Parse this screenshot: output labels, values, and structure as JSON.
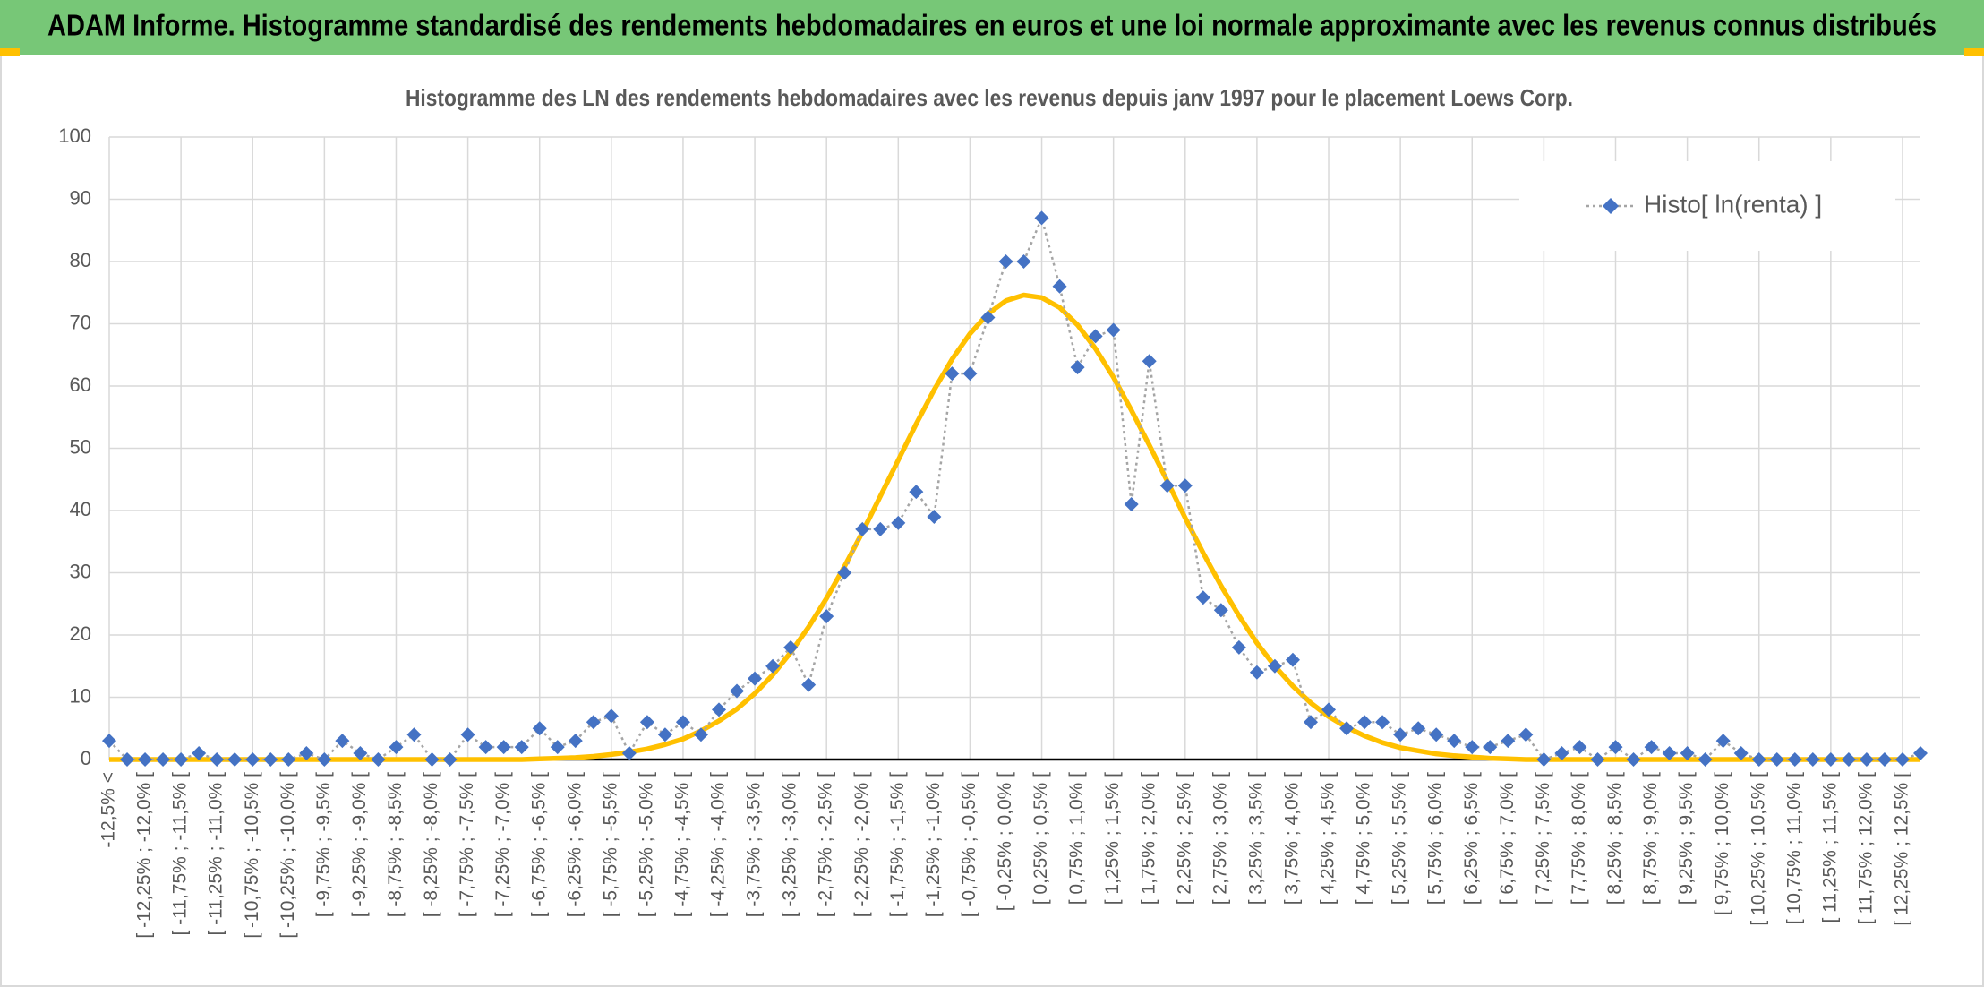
{
  "header": {
    "title": "ADAM Informe. Histogramme standardisé des rendements hebdomadaires en euros et une loi normale approximante avec les revenus connus distribués"
  },
  "chart_data": {
    "type": "line",
    "title": "Histogramme des LN des rendements hebdomadaires avec les revenus depuis janv 1997 pour le placement Loews Corp.",
    "categories": [
      "-12,5% <",
      null,
      "[ -12,25% ; -12,0% [",
      null,
      "[ -11,75% ; -11,5% [",
      null,
      "[ -11,25% ; -11,0% [",
      null,
      "[ -10,75% ; -10,5% [",
      null,
      "[ -10,25% ; -10,0% [",
      null,
      "[ -9,75% ; -9,5% [",
      null,
      "[ -9,25% ; -9,0% [",
      null,
      "[ -8,75% ; -8,5% [",
      null,
      "[ -8,25% ; -8,0% [",
      null,
      "[ -7,75% ; -7,5% [",
      null,
      "[ -7,25% ; -7,0% [",
      null,
      "[ -6,75% ; -6,5% [",
      null,
      "[ -6,25% ; -6,0% [",
      null,
      "[ -5,75% ; -5,5% [",
      null,
      "[ -5,25% ; -5,0% [",
      null,
      "[ -4,75% ; -4,5% [",
      null,
      "[ -4,25% ; -4,0% [",
      null,
      "[ -3,75% ; -3,5% [",
      null,
      "[ -3,25% ; -3,0% [",
      null,
      "[ -2,75% ; -2,5% [",
      null,
      "[ -2,25% ; -2,0% [",
      null,
      "[ -1,75% ; -1,5% [",
      null,
      "[ -1,25% ; -1,0% [",
      null,
      "[ -0,75% ; -0,5% [",
      null,
      "[ -0,25% ; 0,0% [",
      null,
      "[ 0,25% ; 0,5% [",
      null,
      "[ 0,75% ; 1,0% [",
      null,
      "[ 1,25% ; 1,5% [",
      null,
      "[ 1,75% ; 2,0% [",
      null,
      "[ 2,25% ; 2,5% [",
      null,
      "[ 2,75% ; 3,0% [",
      null,
      "[ 3,25% ; 3,5% [",
      null,
      "[ 3,75% ; 4,0% [",
      null,
      "[ 4,25% ; 4,5% [",
      null,
      "[ 4,75% ; 5,0% [",
      null,
      "[ 5,25% ; 5,5% [",
      null,
      "[ 5,75% ; 6,0% [",
      null,
      "[ 6,25% ; 6,5% [",
      null,
      "[ 6,75% ; 7,0% [",
      null,
      "[ 7,25% ; 7,5% [",
      null,
      "[ 7,75% ; 8,0% [",
      null,
      "[ 8,25% ; 8,5% [",
      null,
      "[ 8,75% ; 9,0% [",
      null,
      "[ 9,25% ; 9,5% [",
      null,
      "[ 9,75% ; 10,0% [",
      null,
      "[ 10,25% ; 10,5% [",
      null,
      "[ 10,75% ; 11,0% [",
      null,
      "[ 11,25% ; 11,5% [",
      null,
      "[ 11,75% ; 12,0% [",
      null,
      "[ 12,25% ; 12,5% [",
      null
    ],
    "series": [
      {
        "name": "Histo[ ln(renta) ]",
        "color": "#4472c4",
        "line_color": "#a5a5a5",
        "marker": "diamond",
        "values": [
          3,
          0,
          0,
          0,
          0,
          1,
          0,
          0,
          0,
          0,
          0,
          1,
          0,
          3,
          1,
          0,
          2,
          4,
          0,
          0,
          4,
          2,
          2,
          2,
          5,
          2,
          3,
          6,
          7,
          1,
          6,
          4,
          6,
          4,
          8,
          11,
          13,
          15,
          18,
          12,
          23,
          30,
          37,
          37,
          38,
          43,
          39,
          62,
          62,
          71,
          80,
          80,
          87,
          76,
          63,
          68,
          69,
          41,
          64,
          44,
          44,
          26,
          24,
          18,
          14,
          15,
          16,
          6,
          8,
          5,
          6,
          6,
          4,
          5,
          4,
          3,
          2,
          2,
          3,
          4,
          0,
          1,
          2,
          0,
          2,
          0,
          2,
          1,
          1,
          0,
          3,
          1,
          0,
          0,
          0,
          0,
          0,
          0,
          0,
          0,
          0,
          1
        ]
      },
      {
        "color": "#ffc000",
        "values": [
          0,
          0,
          0,
          0,
          0,
          0,
          0,
          0,
          0,
          0,
          0,
          0,
          0,
          0,
          0,
          0,
          0,
          0,
          0,
          0,
          0,
          0,
          0,
          0,
          0.1,
          0.2,
          0.3,
          0.5,
          0.8,
          1.2,
          1.7,
          2.4,
          3.3,
          4.6,
          6.2,
          8.1,
          10.6,
          13.6,
          17.2,
          21.3,
          25.9,
          31.0,
          36.5,
          42.3,
          48.1,
          53.9,
          59.4,
          64.3,
          68.4,
          71.6,
          73.7,
          74.6,
          74.2,
          72.6,
          69.8,
          66.0,
          61.4,
          56.1,
          50.5,
          44.7,
          38.8,
          33.2,
          27.9,
          23.1,
          18.7,
          15.0,
          11.8,
          9.1,
          6.9,
          5.2,
          3.8,
          2.7,
          1.9,
          1.4,
          0.9,
          0.6,
          0.4,
          0.2,
          0.1,
          0,
          0,
          0,
          0,
          0,
          0,
          0,
          0,
          0,
          0,
          0,
          0,
          0,
          0,
          0,
          0,
          0,
          0,
          0,
          0,
          0,
          0,
          0
        ]
      }
    ],
    "ylim": [
      0,
      100
    ],
    "yticks": [
      0,
      10,
      20,
      30,
      40,
      50,
      60,
      70,
      80,
      90,
      100
    ],
    "grid": true,
    "legend": "top-right"
  }
}
